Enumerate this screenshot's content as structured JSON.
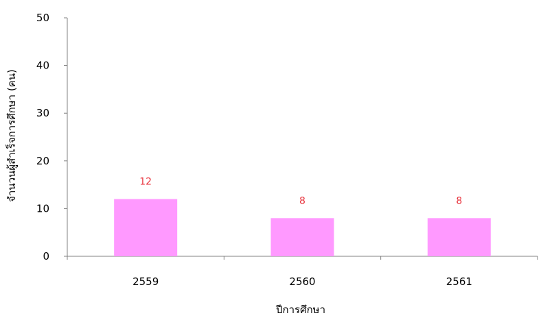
{
  "chart_data": {
    "type": "bar",
    "categories": [
      "2559",
      "2560",
      "2561"
    ],
    "values": [
      12,
      8,
      8
    ],
    "data_labels": [
      "12",
      "8",
      "8"
    ],
    "xlabel": "ปีการศึกษา",
    "ylabel": "จำนวนผู้สำเร็จการศึกษา (คน)",
    "ylim": [
      0,
      50
    ],
    "yticks": [
      0,
      10,
      20,
      30,
      40,
      50
    ],
    "grid": false,
    "legend": "none",
    "bar_color": "#ff99ff",
    "label_color": "#e8323c"
  }
}
